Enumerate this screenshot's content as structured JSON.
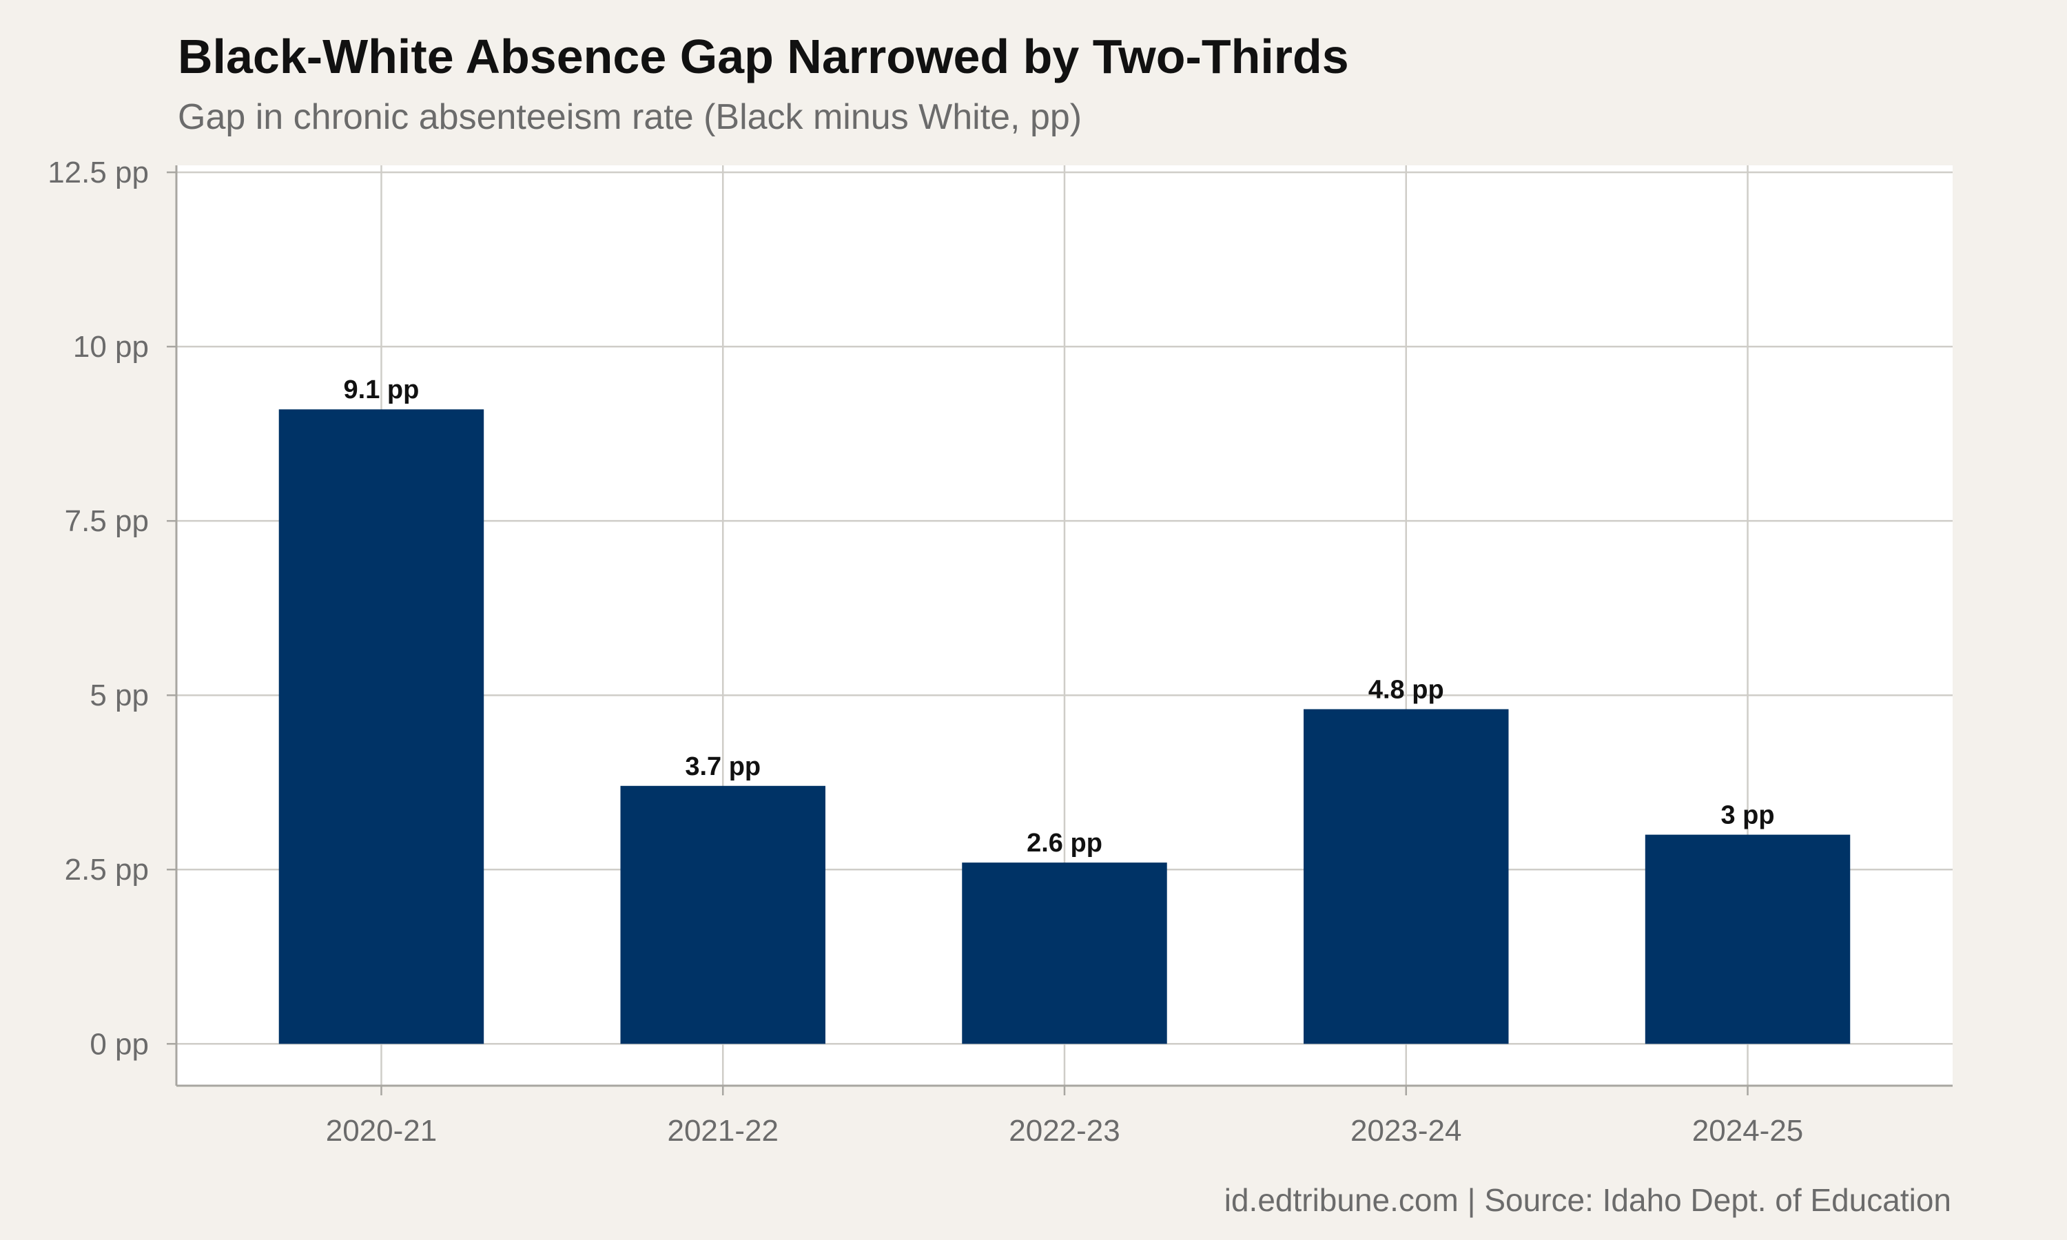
{
  "chart": {
    "title": "Black-White Absence Gap Narrowed by Two-Thirds",
    "subtitle": "Gap in chronic absenteeism rate (Black minus White, pp)",
    "caption": "id.edtribune.com | Source: Idaho Dept. of Education"
  },
  "colors": {
    "background": "#f4f1ec",
    "panel": "#ffffff",
    "bar": "#003366",
    "grid": "#cfcdc8"
  },
  "chart_data": {
    "type": "bar",
    "title": "Black-White Absence Gap Narrowed by Two-Thirds",
    "subtitle": "Gap in chronic absenteeism rate (Black minus White, pp)",
    "categories": [
      "2020-21",
      "2021-22",
      "2022-23",
      "2023-24",
      "2024-25"
    ],
    "values": [
      9.1,
      3.7,
      2.6,
      4.8,
      3.0
    ],
    "data_labels": [
      "9.1 pp",
      "3.7 pp",
      "2.6 pp",
      "4.8 pp",
      "3 pp"
    ],
    "yticks": [
      0,
      2.5,
      5,
      7.5,
      10,
      12.5
    ],
    "ytick_labels": [
      "0 pp",
      "2.5 pp",
      "5 pp",
      "7.5 pp",
      "10 pp",
      "12.5 pp"
    ],
    "ylim": [
      -0.6,
      12.6
    ],
    "xlabel": "",
    "ylabel": "",
    "grid": true,
    "legend": "none"
  }
}
